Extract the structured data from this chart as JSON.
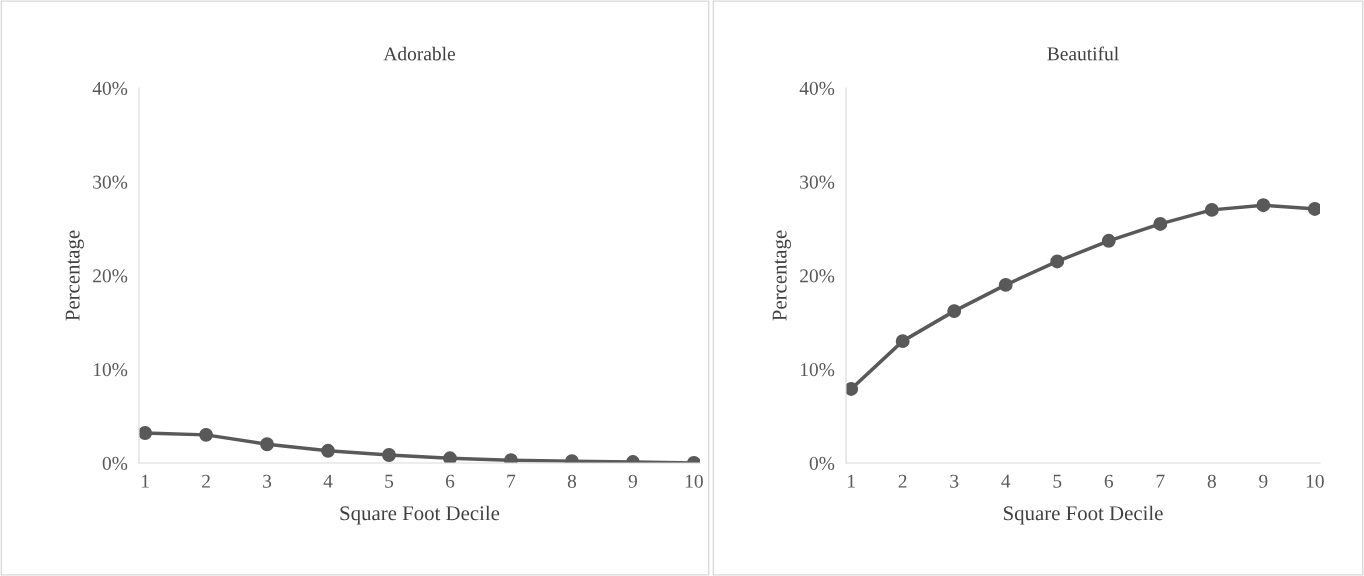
{
  "chart_data": [
    {
      "type": "line",
      "title": "Adorable",
      "xlabel": "Square Foot Decile",
      "ylabel": "Percentage",
      "categories": [
        "1",
        "2",
        "3",
        "4",
        "5",
        "6",
        "7",
        "8",
        "9",
        "10"
      ],
      "series": [
        {
          "color": "#595959",
          "values": [
            3.2,
            3.0,
            2.0,
            1.3,
            0.85,
            0.5,
            0.3,
            0.2,
            0.1,
            0.0
          ]
        }
      ],
      "ylim": [
        0,
        40
      ],
      "yticks": [
        {
          "value": 0,
          "label": "0%"
        },
        {
          "value": 10,
          "label": "10%"
        },
        {
          "value": 20,
          "label": "20%"
        },
        {
          "value": 30,
          "label": "30%"
        },
        {
          "value": 40,
          "label": "40%"
        }
      ],
      "grid": false,
      "legend": false,
      "marker": "circle",
      "line_style": "solid"
    },
    {
      "type": "line",
      "title": "Beautiful",
      "xlabel": "Square Foot Decile",
      "ylabel": "Percentage",
      "categories": [
        "1",
        "2",
        "3",
        "4",
        "5",
        "6",
        "7",
        "8",
        "9",
        "10"
      ],
      "series": [
        {
          "color": "#595959",
          "values": [
            7.9,
            13.0,
            16.2,
            19.0,
            21.5,
            23.7,
            25.5,
            27.0,
            27.5,
            27.1
          ]
        }
      ],
      "ylim": [
        0,
        40
      ],
      "yticks": [
        {
          "value": 0,
          "label": "0%"
        },
        {
          "value": 10,
          "label": "10%"
        },
        {
          "value": 20,
          "label": "20%"
        },
        {
          "value": 30,
          "label": "30%"
        },
        {
          "value": 40,
          "label": "40%"
        }
      ],
      "grid": false,
      "legend": false,
      "marker": "circle",
      "line_style": "solid"
    }
  ]
}
